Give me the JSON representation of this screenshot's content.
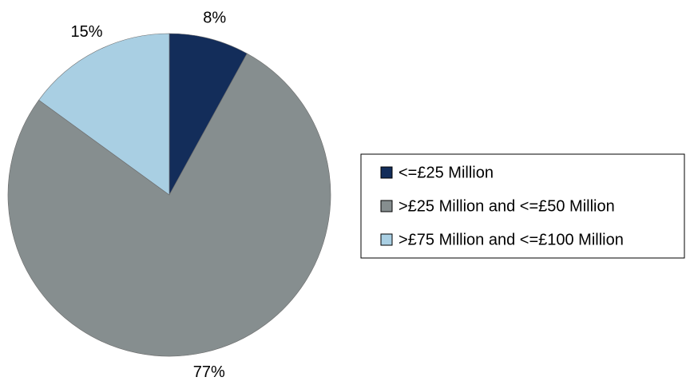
{
  "chart_data": {
    "type": "pie",
    "categories": [
      "<=£25 Million",
      ">£25 Million and <=£50 Million",
      ">£75 Million and <=£100 Million"
    ],
    "values": [
      8,
      77,
      15
    ],
    "value_labels": [
      "8%",
      "77%",
      "15%"
    ],
    "colors": [
      "#132d5a",
      "#868e8f",
      "#a9cfe3"
    ],
    "legend": "right"
  }
}
